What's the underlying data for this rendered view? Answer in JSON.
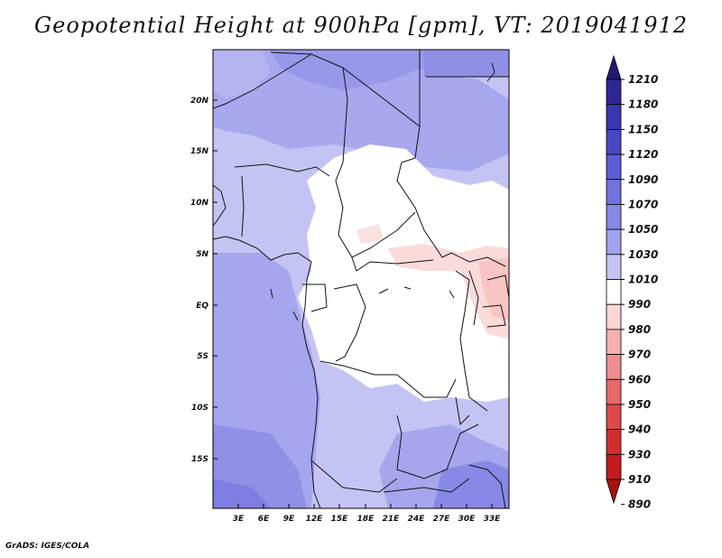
{
  "title": "Geopotential Height at 900hPa [gpm], VT: 2019041912",
  "credit": "GrADS: IGES/COLA",
  "map": {
    "lon_labels": [
      "3E",
      "6E",
      "9E",
      "12E",
      "15E",
      "18E",
      "21E",
      "24E",
      "27E",
      "30E",
      "33E"
    ],
    "lat_labels": [
      "20N",
      "15N",
      "10N",
      "5N",
      "EQ",
      "5S",
      "10S",
      "15S"
    ]
  },
  "colorbar": {
    "levels": [
      "1210",
      "1180",
      "1150",
      "1120",
      "1090",
      "1070",
      "1050",
      "1030",
      "1010",
      "990",
      "980",
      "970",
      "960",
      "950",
      "940",
      "930",
      "910",
      "890"
    ],
    "colors": [
      "#241878",
      "#2e2694",
      "#3a36b0",
      "#4848c4",
      "#5c5cd4",
      "#7272de",
      "#8888e6",
      "#a2a2ee",
      "#c4c4f4",
      "#ffffff",
      "#fcd6d6",
      "#f6b0b0",
      "#ee8e8e",
      "#e66a6a",
      "#de4a4a",
      "#d22e2e",
      "#c41c1c",
      "#a81010"
    ]
  }
}
